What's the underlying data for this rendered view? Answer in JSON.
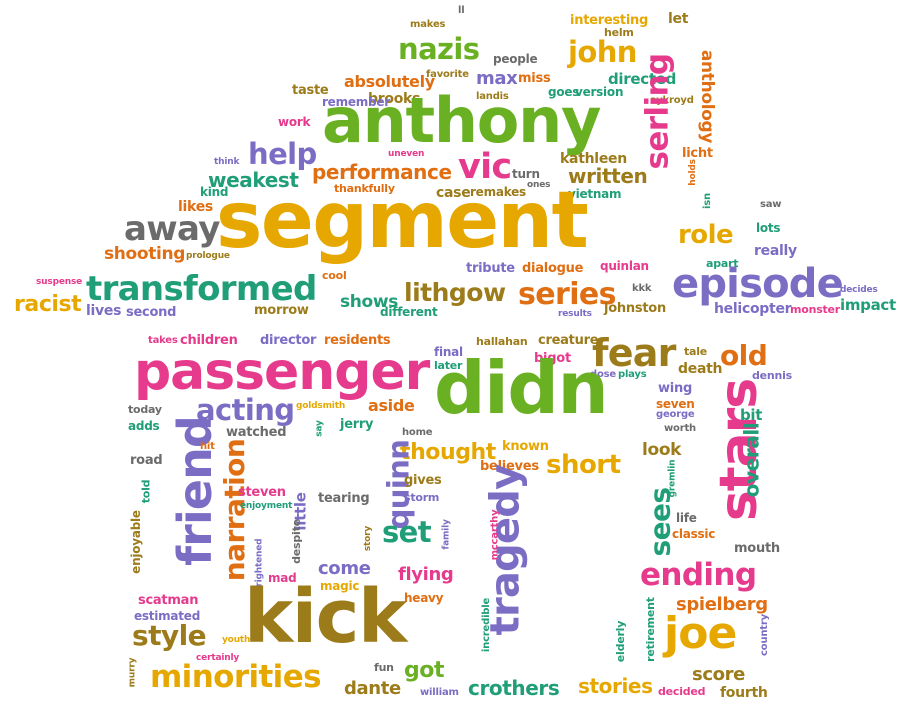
{
  "palette": {
    "gold": "#e6a800",
    "green": "#6ab023",
    "pink": "#e63a8d",
    "purple": "#7b6cc4",
    "teal": "#1f9e77",
    "orange": "#e06e12",
    "olive": "#9c7b1a",
    "gray": "#6b6b6b"
  },
  "words": [
    {
      "text": "segment",
      "color": "#e6a800",
      "rot": 0
    },
    {
      "text": "didn",
      "color": "#6ab023",
      "rot": 0
    },
    {
      "text": "anthony",
      "color": "#6ab023",
      "rot": 0
    },
    {
      "text": "kick",
      "color": "#9c7b1a",
      "rot": 0
    },
    {
      "text": "passenger",
      "color": "#e63a8d",
      "rot": 0
    },
    {
      "text": "stars",
      "color": "#e63a8d",
      "rot": -90
    },
    {
      "text": "friend",
      "color": "#7b6cc4",
      "rot": -90
    },
    {
      "text": "episode",
      "color": "#7b6cc4",
      "rot": 0
    },
    {
      "text": "transformed",
      "color": "#1f9e77",
      "rot": 0
    },
    {
      "text": "tragedy",
      "color": "#7b6cc4",
      "rot": -90
    },
    {
      "text": "joe",
      "color": "#e6a800",
      "rot": 0
    },
    {
      "text": "narration",
      "color": "#e06e12",
      "rot": -90
    },
    {
      "text": "minorities",
      "color": "#e6a800",
      "rot": 0
    },
    {
      "text": "fear",
      "color": "#9c7b1a",
      "rot": 0
    },
    {
      "text": "acting",
      "color": "#7b6cc4",
      "rot": 0
    },
    {
      "text": "nazis",
      "color": "#6ab023",
      "rot": 0
    },
    {
      "text": "john",
      "color": "#e6a800",
      "rot": 0
    },
    {
      "text": "serling",
      "color": "#e63a8d",
      "rot": -90
    },
    {
      "text": "series",
      "color": "#e06e12",
      "rot": 0
    },
    {
      "text": "away",
      "color": "#6b6b6b",
      "rot": 0
    },
    {
      "text": "ending",
      "color": "#e63a8d",
      "rot": 0
    },
    {
      "text": "vic",
      "color": "#e63a8d",
      "rot": 0
    },
    {
      "text": "help",
      "color": "#7b6cc4",
      "rot": 0
    },
    {
      "text": "style",
      "color": "#9c7b1a",
      "rot": 0
    },
    {
      "text": "set",
      "color": "#1f9e77",
      "rot": 0
    },
    {
      "text": "old",
      "color": "#e06e12",
      "rot": 0
    },
    {
      "text": "quinn",
      "color": "#7b6cc4",
      "rot": -90
    },
    {
      "text": "role",
      "color": "#e6a800",
      "rot": 0
    },
    {
      "text": "lithgow",
      "color": "#9c7b1a",
      "rot": 0
    },
    {
      "text": "short",
      "color": "#e6a800",
      "rot": 0
    },
    {
      "text": "sees",
      "color": "#1f9e77",
      "rot": -90
    },
    {
      "text": "thought",
      "color": "#e6a800",
      "rot": 0
    },
    {
      "text": "performance",
      "color": "#e06e12",
      "rot": 0
    },
    {
      "text": "written",
      "color": "#9c7b1a",
      "rot": 0
    },
    {
      "text": "weakest",
      "color": "#1f9e77",
      "rot": 0
    },
    {
      "text": "racist",
      "color": "#e6a800",
      "rot": 0
    },
    {
      "text": "shooting",
      "color": "#e06e12",
      "rot": 0
    },
    {
      "text": "flying",
      "color": "#e63a8d",
      "rot": 0
    },
    {
      "text": "come",
      "color": "#7b6cc4",
      "rot": 0
    },
    {
      "text": "got",
      "color": "#6ab023",
      "rot": 0
    },
    {
      "text": "look",
      "color": "#9c7b1a",
      "rot": 0
    },
    {
      "text": "crothers",
      "color": "#1f9e77",
      "rot": 0
    },
    {
      "text": "stories",
      "color": "#e6a800",
      "rot": 0
    },
    {
      "text": "score",
      "color": "#9c7b1a",
      "rot": 0
    },
    {
      "text": "dante",
      "color": "#9c7b1a",
      "rot": 0
    },
    {
      "text": "spielberg",
      "color": "#e06e12",
      "rot": 0
    },
    {
      "text": "shows",
      "color": "#1f9e77",
      "rot": 0
    },
    {
      "text": "aside",
      "color": "#e06e12",
      "rot": 0
    },
    {
      "text": "little",
      "color": "#7b6cc4",
      "rot": -90
    },
    {
      "text": "anthology",
      "color": "#e06e12",
      "rot": 90
    },
    {
      "text": "max",
      "color": "#7b6cc4",
      "rot": 0
    },
    {
      "text": "brooks",
      "color": "#9c7b1a",
      "rot": 0
    },
    {
      "text": "absolutely",
      "color": "#e06e12",
      "rot": 0
    },
    {
      "text": "directed",
      "color": "#1f9e77",
      "rot": 0
    },
    {
      "text": "kathleen",
      "color": "#9c7b1a",
      "rot": 0
    },
    {
      "text": "overall",
      "color": "#1f9e77",
      "rot": -90
    },
    {
      "text": "children",
      "color": "#e63a8d",
      "rot": 0
    },
    {
      "text": "director",
      "color": "#7b6cc4",
      "rot": 0
    },
    {
      "text": "residents",
      "color": "#e06e12",
      "rot": 0
    },
    {
      "text": "believes",
      "color": "#e06e12",
      "rot": 0
    },
    {
      "text": "gives",
      "color": "#9c7b1a",
      "rot": 0
    },
    {
      "text": "watched",
      "color": "#6b6b6b",
      "rot": 0
    },
    {
      "text": "jerry",
      "color": "#1f9e77",
      "rot": 0
    },
    {
      "text": "helicopter",
      "color": "#7b6cc4",
      "rot": 0
    },
    {
      "text": "impact",
      "color": "#1f9e77",
      "rot": 0
    },
    {
      "text": "second",
      "color": "#7b6cc4",
      "rot": 0
    },
    {
      "text": "lives",
      "color": "#7b6cc4",
      "rot": 0
    },
    {
      "text": "morrow",
      "color": "#9c7b1a",
      "rot": 0
    },
    {
      "text": "different",
      "color": "#1f9e77",
      "rot": 0
    },
    {
      "text": "taste",
      "color": "#9c7b1a",
      "rot": 0
    },
    {
      "text": "remember",
      "color": "#7b6cc4",
      "rot": 0
    },
    {
      "text": "people",
      "color": "#6b6b6b",
      "rot": 0
    },
    {
      "text": "interesting",
      "color": "#e6a800",
      "rot": 0
    },
    {
      "text": "really",
      "color": "#7b6cc4",
      "rot": 0
    },
    {
      "text": "lots",
      "color": "#1f9e77",
      "rot": 0
    },
    {
      "text": "apart",
      "color": "#1f9e77",
      "rot": 0
    },
    {
      "text": "likes",
      "color": "#e06e12",
      "rot": 0
    },
    {
      "text": "work",
      "color": "#e63a8d",
      "rot": 0
    },
    {
      "text": "kind",
      "color": "#1f9e77",
      "rot": 0
    },
    {
      "text": "favorite",
      "color": "#9c7b1a",
      "rot": 0
    },
    {
      "text": "miss",
      "color": "#e06e12",
      "rot": 0
    },
    {
      "text": "goes",
      "color": "#1f9e77",
      "rot": 0
    },
    {
      "text": "version",
      "color": "#1f9e77",
      "rot": 0
    },
    {
      "text": "helm",
      "color": "#9c7b1a",
      "rot": 0
    },
    {
      "text": "let",
      "color": "#9c7b1a",
      "rot": 0
    },
    {
      "text": "turn",
      "color": "#6b6b6b",
      "rot": 0
    },
    {
      "text": "case",
      "color": "#9c7b1a",
      "rot": 0
    },
    {
      "text": "remakes",
      "color": "#9c7b1a",
      "rot": 0
    },
    {
      "text": "vietnam",
      "color": "#1f9e77",
      "rot": 0
    },
    {
      "text": "licht",
      "color": "#e06e12",
      "rot": 0
    },
    {
      "text": "tribute",
      "color": "#7b6cc4",
      "rot": 0
    },
    {
      "text": "dialogue",
      "color": "#e06e12",
      "rot": 0
    },
    {
      "text": "quinlan",
      "color": "#e63a8d",
      "rot": 0
    },
    {
      "text": "johnston",
      "color": "#9c7b1a",
      "rot": 0
    },
    {
      "text": "cool",
      "color": "#e06e12",
      "rot": 0
    },
    {
      "text": "prologue",
      "color": "#9c7b1a",
      "rot": 0
    },
    {
      "text": "thankfully",
      "color": "#e06e12",
      "rot": 0
    },
    {
      "text": "suspense",
      "color": "#e63a8d",
      "rot": 0
    },
    {
      "text": "monster",
      "color": "#e63a8d",
      "rot": 0
    },
    {
      "text": "decides",
      "color": "#7b6cc4",
      "rot": 0
    },
    {
      "text": "results",
      "color": "#7b6cc4",
      "rot": 0
    },
    {
      "text": "piece",
      "color": "#9c7b1a",
      "rot": 0
    },
    {
      "text": "kkk",
      "color": "#6b6b6b",
      "rot": 0
    },
    {
      "text": "takes",
      "color": "#e63a8d",
      "rot": 0
    },
    {
      "text": "hallahan",
      "color": "#9c7b1a",
      "rot": 0
    },
    {
      "text": "creature",
      "color": "#9c7b1a",
      "rot": 0
    },
    {
      "text": "final",
      "color": "#7b6cc4",
      "rot": 0
    },
    {
      "text": "later",
      "color": "#1f9e77",
      "rot": 0
    },
    {
      "text": "bigot",
      "color": "#e63a8d",
      "rot": 0
    },
    {
      "text": "tale",
      "color": "#9c7b1a",
      "rot": 0
    },
    {
      "text": "dennis",
      "color": "#7b6cc4",
      "rot": 0
    },
    {
      "text": "death",
      "color": "#9c7b1a",
      "rot": 0
    },
    {
      "text": "wing",
      "color": "#7b6cc4",
      "rot": 0
    },
    {
      "text": "dose",
      "color": "#7b6cc4",
      "rot": 0
    },
    {
      "text": "plays",
      "color": "#1f9e77",
      "rot": 0
    },
    {
      "text": "seven",
      "color": "#e06e12",
      "rot": 0
    },
    {
      "text": "george",
      "color": "#7b6cc4",
      "rot": 0
    },
    {
      "text": "bit",
      "color": "#1f9e77",
      "rot": 0
    },
    {
      "text": "worth",
      "color": "#6b6b6b",
      "rot": 0
    },
    {
      "text": "today",
      "color": "#6b6b6b",
      "rot": 0
    },
    {
      "text": "adds",
      "color": "#1f9e77",
      "rot": 0
    },
    {
      "text": "road",
      "color": "#6b6b6b",
      "rot": 0
    },
    {
      "text": "hit",
      "color": "#e06e12",
      "rot": 0
    },
    {
      "text": "goldsmith",
      "color": "#e6a800",
      "rot": 0
    },
    {
      "text": "say",
      "color": "#1f9e77",
      "rot": -90
    },
    {
      "text": "home",
      "color": "#6b6b6b",
      "rot": 0
    },
    {
      "text": "known",
      "color": "#e6a800",
      "rot": 0
    },
    {
      "text": "steven",
      "color": "#e63a8d",
      "rot": 0
    },
    {
      "text": "enjoyment",
      "color": "#1f9e77",
      "rot": 0
    },
    {
      "text": "tearing",
      "color": "#6b6b6b",
      "rot": 0
    },
    {
      "text": "storm",
      "color": "#7b6cc4",
      "rot": 0
    },
    {
      "text": "told",
      "color": "#1f9e77",
      "rot": -90
    },
    {
      "text": "enjoyable",
      "color": "#9c7b1a",
      "rot": -90
    },
    {
      "text": "despite",
      "color": "#6b6b6b",
      "rot": -90
    },
    {
      "text": "story",
      "color": "#9c7b1a",
      "rot": -90
    },
    {
      "text": "family",
      "color": "#7b6cc4",
      "rot": -90
    },
    {
      "text": "mccarthy",
      "color": "#e63a8d",
      "rot": -90
    },
    {
      "text": "gremlin",
      "color": "#1f9e77",
      "rot": -90
    },
    {
      "text": "life",
      "color": "#6b6b6b",
      "rot": 0
    },
    {
      "text": "classic",
      "color": "#e06e12",
      "rot": 0
    },
    {
      "text": "mouth",
      "color": "#6b6b6b",
      "rot": 0
    },
    {
      "text": "mad",
      "color": "#e63a8d",
      "rot": 0
    },
    {
      "text": "magic",
      "color": "#e6a800",
      "rot": 0
    },
    {
      "text": "scatman",
      "color": "#e63a8d",
      "rot": 0
    },
    {
      "text": "estimated",
      "color": "#7b6cc4",
      "rot": 0
    },
    {
      "text": "frightened",
      "color": "#7b6cc4",
      "rot": -90
    },
    {
      "text": "heavy",
      "color": "#e06e12",
      "rot": 0
    },
    {
      "text": "incredible",
      "color": "#1f9e77",
      "rot": -90
    },
    {
      "text": "youth",
      "color": "#e6a800",
      "rot": 0
    },
    {
      "text": "certainly",
      "color": "#e63a8d",
      "rot": 0
    },
    {
      "text": "murry",
      "color": "#9c7b1a",
      "rot": -90
    },
    {
      "text": "fun",
      "color": "#6b6b6b",
      "rot": 0
    },
    {
      "text": "william",
      "color": "#7b6cc4",
      "rot": 0
    },
    {
      "text": "elderly",
      "color": "#1f9e77",
      "rot": -90
    },
    {
      "text": "retirement",
      "color": "#1f9e77",
      "rot": -90
    },
    {
      "text": "country",
      "color": "#7b6cc4",
      "rot": -90
    },
    {
      "text": "decided",
      "color": "#e63a8d",
      "rot": 0
    },
    {
      "text": "fourth",
      "color": "#9c7b1a",
      "rot": 0
    },
    {
      "text": "ll",
      "color": "#6b6b6b",
      "rot": 0
    },
    {
      "text": "makes",
      "color": "#9c7b1a",
      "rot": 0
    },
    {
      "text": "landis",
      "color": "#9c7b1a",
      "rot": 0
    },
    {
      "text": "aykroyd",
      "color": "#9c7b1a",
      "rot": 0
    },
    {
      "text": "uneven",
      "color": "#e63a8d",
      "rot": 0
    },
    {
      "text": "think",
      "color": "#7b6cc4",
      "rot": 0
    },
    {
      "text": "ones",
      "color": "#6b6b6b",
      "rot": 0
    },
    {
      "text": "holds",
      "color": "#e06e12",
      "rot": -90
    },
    {
      "text": "isn",
      "color": "#1f9e77",
      "rot": -90
    },
    {
      "text": "saw",
      "color": "#6b6b6b",
      "rot": 0
    }
  ]
}
